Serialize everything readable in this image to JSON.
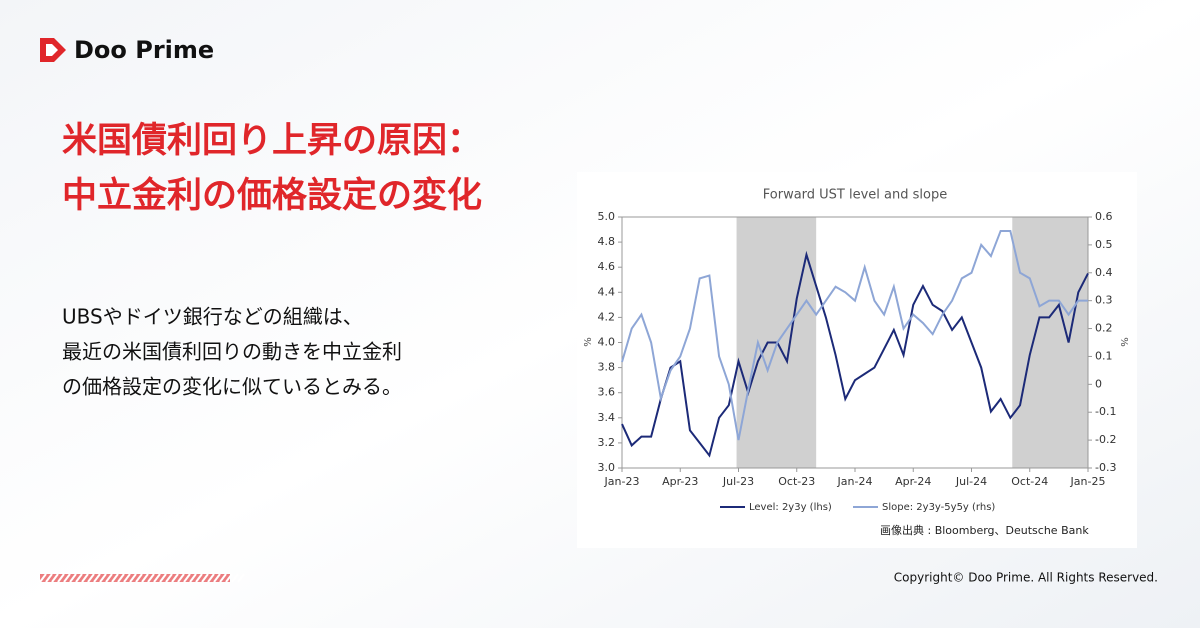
{
  "brand": "Doo Prime",
  "headline": [
    "米国債利回り上昇の原因：",
    "中立金利の価格設定の変化"
  ],
  "body": [
    "UBSやドイツ銀行などの組織は、",
    "最近の米国債利回りの動きを中立金利",
    "の価格設定の変化に似ているとみる。"
  ],
  "source": "画像出典 : Bloomberg、Deutsche Bank",
  "copyright": "Copyright© Doo Prime. All Rights Reserved.",
  "chart_data": {
    "type": "line",
    "title": "Forward UST level and slope",
    "y_label": "%",
    "y2_label": "%",
    "x": [
      0,
      0.5,
      1,
      1.5,
      2,
      2.5,
      3,
      3.5,
      4,
      4.5,
      5,
      5.5,
      6,
      6.5,
      7,
      7.5,
      8,
      8.5,
      9,
      9.5,
      10,
      10.5,
      11,
      11.5,
      12,
      12.5,
      13,
      13.5,
      14,
      14.5,
      15,
      15.5,
      16,
      16.5,
      17,
      17.5,
      18,
      18.5,
      19,
      19.5,
      20,
      20.5,
      21,
      21.5,
      22,
      22.5,
      23,
      23.5,
      24
    ],
    "xlim": [
      0,
      24
    ],
    "xticks": [
      {
        "value": 0,
        "label": "Jan-23"
      },
      {
        "value": 3,
        "label": "Apr-23"
      },
      {
        "value": 6,
        "label": "Jul-23"
      },
      {
        "value": 9,
        "label": "Oct-23"
      },
      {
        "value": 12,
        "label": "Jan-24"
      },
      {
        "value": 15,
        "label": "Apr-24"
      },
      {
        "value": 18,
        "label": "Jul-24"
      },
      {
        "value": 21,
        "label": "Oct-24"
      },
      {
        "value": 24,
        "label": "Jan-25"
      }
    ],
    "ylim": [
      3.0,
      5.0
    ],
    "yticks": [
      {
        "value": 3.0,
        "label": "3.0"
      },
      3.2,
      3.4,
      3.6,
      3.8,
      {
        "value": 4.0,
        "label": "4.0"
      },
      4.2,
      4.4,
      4.6,
      4.8,
      {
        "value": 5.0,
        "label": "5.0"
      }
    ],
    "y2lim": [
      -0.3,
      0.6
    ],
    "y2ticks": [
      -0.3,
      -0.2,
      -0.1,
      0,
      0.1,
      0.2,
      0.3,
      0.4,
      0.5,
      0.6
    ],
    "shaded_ranges": [
      [
        5.9,
        10.0
      ],
      [
        20.1,
        24
      ]
    ],
    "shade_color": "#d0d0d0",
    "series": [
      {
        "name": "Level: 2y3y (lhs)",
        "color": "#1c2a78",
        "values": [
          3.35,
          3.18,
          3.25,
          3.25,
          3.55,
          3.8,
          3.85,
          3.3,
          3.2,
          3.1,
          3.4,
          3.5,
          3.85,
          3.6,
          3.85,
          4.0,
          4.0,
          3.85,
          4.35,
          4.7,
          4.45,
          4.2,
          3.9,
          3.55,
          3.7,
          3.75,
          3.8,
          3.95,
          4.1,
          3.9,
          4.3,
          4.45,
          4.3,
          4.25,
          4.1,
          4.2,
          4.0,
          3.8,
          3.45,
          3.55,
          3.4,
          3.5,
          3.9,
          4.2,
          4.2,
          4.3,
          4.0,
          4.4,
          4.55
        ]
      },
      {
        "name": "Slope: 2y3y-5y5y (rhs)",
        "color": "#8ea6d6",
        "axis": "y2",
        "values": [
          0.08,
          0.2,
          0.25,
          0.15,
          -0.05,
          0.05,
          0.1,
          0.2,
          0.38,
          0.39,
          0.1,
          0.0,
          -0.2,
          -0.02,
          0.15,
          0.05,
          0.15,
          0.2,
          0.25,
          0.3,
          0.25,
          0.3,
          0.35,
          0.33,
          0.3,
          0.42,
          0.3,
          0.25,
          0.35,
          0.2,
          0.25,
          0.22,
          0.18,
          0.25,
          0.3,
          0.38,
          0.4,
          0.5,
          0.46,
          0.55,
          0.55,
          0.4,
          0.38,
          0.28,
          0.3,
          0.3,
          0.25,
          0.3,
          0.3
        ]
      }
    ]
  }
}
